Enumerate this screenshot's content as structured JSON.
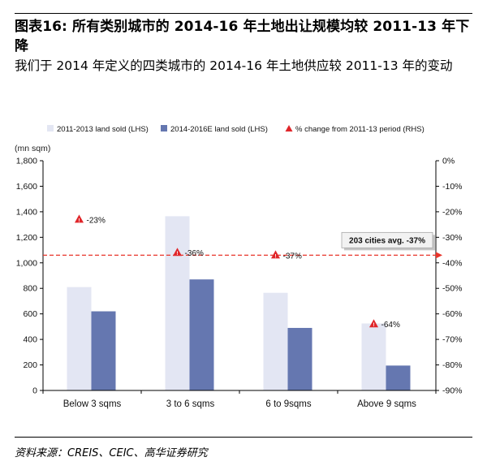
{
  "header": {
    "title": "图表16: 所有类别城市的 2014-16 年土地出让规模均较 2011-13 年下降",
    "subtitle": "我们于 2014 年定义的四类城市的 2014-16 年土地供应较 2011-13 年的变动"
  },
  "footer": {
    "source": "资料来源：CREIS、CEIC、高华证券研究"
  },
  "colors": {
    "series_2011_13": "#e3e6f3",
    "series_2014_16": "#6577b0",
    "pct_marker": "#e0262a",
    "avg_line": "#e8352b"
  },
  "chart_data": {
    "type": "bar",
    "categories": [
      "Below 3 sqms",
      "3 to 6 sqms",
      "6 to 9sqms",
      "Above 9 sqms"
    ],
    "series": [
      {
        "name": "2011-2013 land sold (LHS)",
        "values": [
          810,
          1365,
          765,
          525
        ],
        "axis": "left"
      },
      {
        "name": "2014-2016E land sold (LHS)",
        "values": [
          620,
          870,
          490,
          195
        ],
        "axis": "left"
      },
      {
        "name": "% change from 2011-13 period (RHS)",
        "values": [
          -23,
          -36,
          -37,
          -64
        ],
        "axis": "right",
        "marker": "triangle",
        "labels": [
          "-23%",
          "-36%",
          "-37%",
          "-64%"
        ]
      }
    ],
    "ylabel": "(mn sqm)",
    "ylim": [
      0,
      1800
    ],
    "yticks": [
      0,
      200,
      400,
      600,
      800,
      1000,
      1200,
      1400,
      1600,
      1800
    ],
    "ytick_labels": [
      "0",
      "200",
      "400",
      "600",
      "800",
      "1,000",
      "1,200",
      "1,400",
      "1,600",
      "1,800"
    ],
    "y2lim": [
      -90,
      0
    ],
    "y2ticks": [
      0,
      -10,
      -20,
      -30,
      -40,
      -50,
      -60,
      -70,
      -80,
      -90
    ],
    "y2tick_labels": [
      "0%",
      "-10%",
      "-20%",
      "-30%",
      "-40%",
      "-50%",
      "-60%",
      "-70%",
      "-80%",
      "-90%"
    ],
    "reference_line": {
      "value": -37,
      "axis": "right",
      "label": "203 cities avg. -37%"
    },
    "legend_placement": "top",
    "grid": false
  }
}
